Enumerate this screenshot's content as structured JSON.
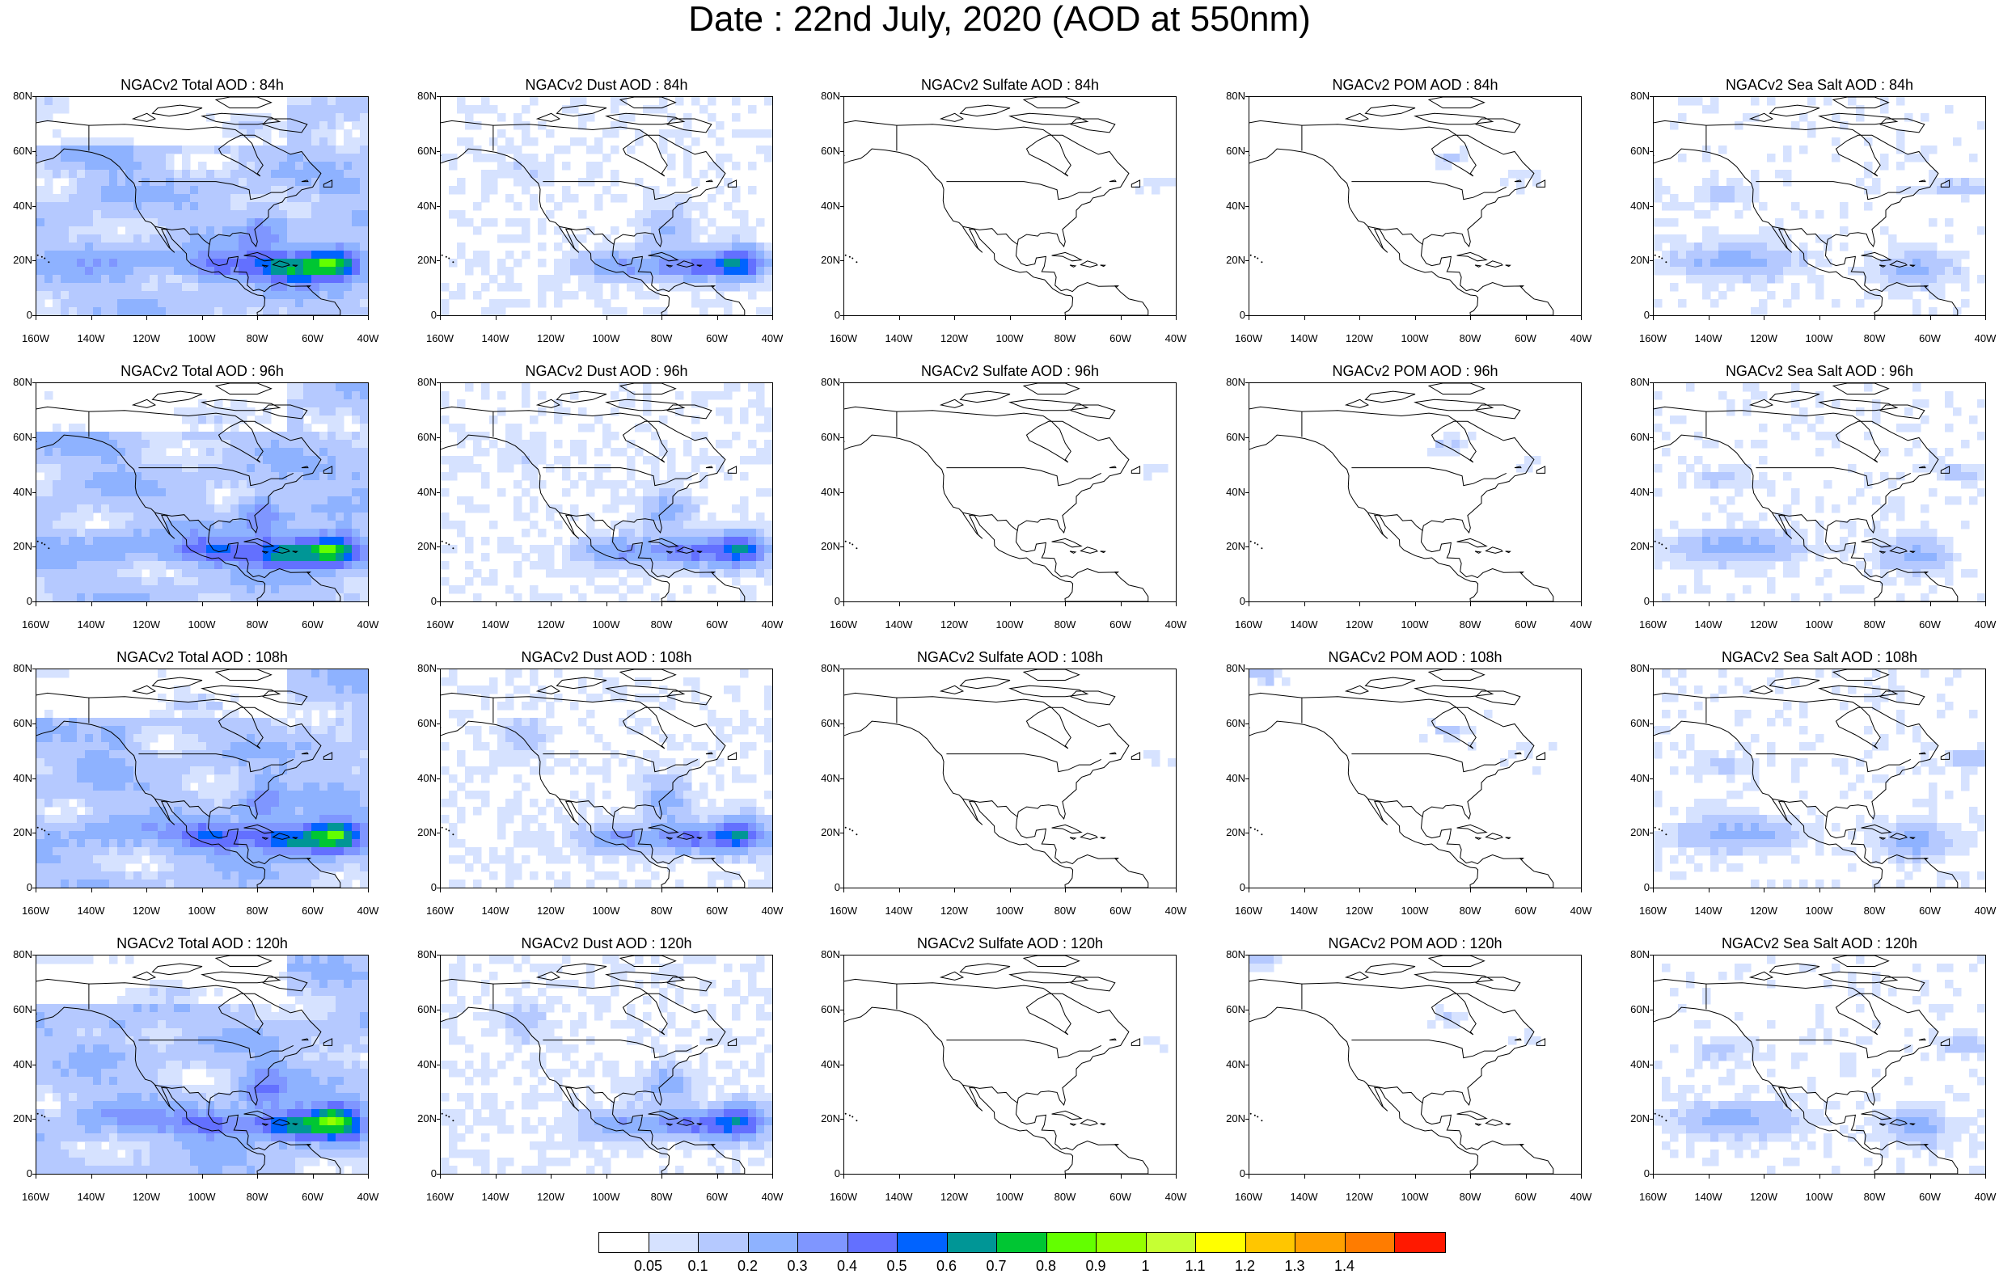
{
  "title": "Date : 22nd July, 2020 (AOD at 550nm)",
  "species": [
    "Total",
    "Dust",
    "Sulfate",
    "POM",
    "Sea Salt"
  ],
  "rows": [
    {
      "hours": "84h",
      "titles": [
        "NGACv2 Total AOD : 84h",
        "NGACv2 Dust AOD : 84h",
        "NGACv2 Sulfate AOD : 84h",
        "NGACv2 POM AOD : 84h",
        "NGACv2 Sea Salt AOD : 84h"
      ]
    },
    {
      "hours": "96h",
      "titles": [
        "NGACv2 Total AOD : 96h",
        "NGACv2 Dust AOD : 96h",
        "NGACv2 Sulfate AOD : 96h",
        "NGACv2 POM AOD : 96h",
        "NGACv2 Sea Salt AOD : 96h"
      ]
    },
    {
      "hours": "108h",
      "titles": [
        "NGACv2 Total AOD : 108h",
        "NGACv2 Dust AOD : 108h",
        "NGACv2 Sulfate AOD : 108h",
        "NGACv2 POM AOD : 108h",
        "NGACv2 Sea Salt AOD : 108h"
      ]
    },
    {
      "hours": "120h",
      "titles": [
        "NGACv2 Total AOD : 120h",
        "NGACv2 Dust AOD : 120h",
        "NGACv2 Sulfate AOD : 120h",
        "NGACv2 POM AOD : 120h",
        "NGACv2 Sea Salt  AOD : 120h"
      ]
    }
  ],
  "lat_ticks": [
    "80N",
    "60N",
    "40N",
    "20N",
    "0"
  ],
  "lon_ticks": [
    "160W",
    "140W",
    "120W",
    "100W",
    "80W",
    "60W",
    "40W"
  ],
  "colorbar": {
    "colors": [
      "#ffffff",
      "#d6e2ff",
      "#b5c9ff",
      "#8eb2ff",
      "#7f96ff",
      "#6370ff",
      "#0063ff",
      "#009696",
      "#00c633",
      "#63ff00",
      "#96ff00",
      "#c6ff33",
      "#ffff00",
      "#ffc600",
      "#ffa000",
      "#ff7c00",
      "#ff1900"
    ],
    "labels": [
      "0.05",
      "0.1",
      "0.2",
      "0.3",
      "0.4",
      "0.5",
      "0.6",
      "0.7",
      "0.8",
      "0.9",
      "1",
      "1.1",
      "1.2",
      "1.3",
      "1.4"
    ]
  }
}
